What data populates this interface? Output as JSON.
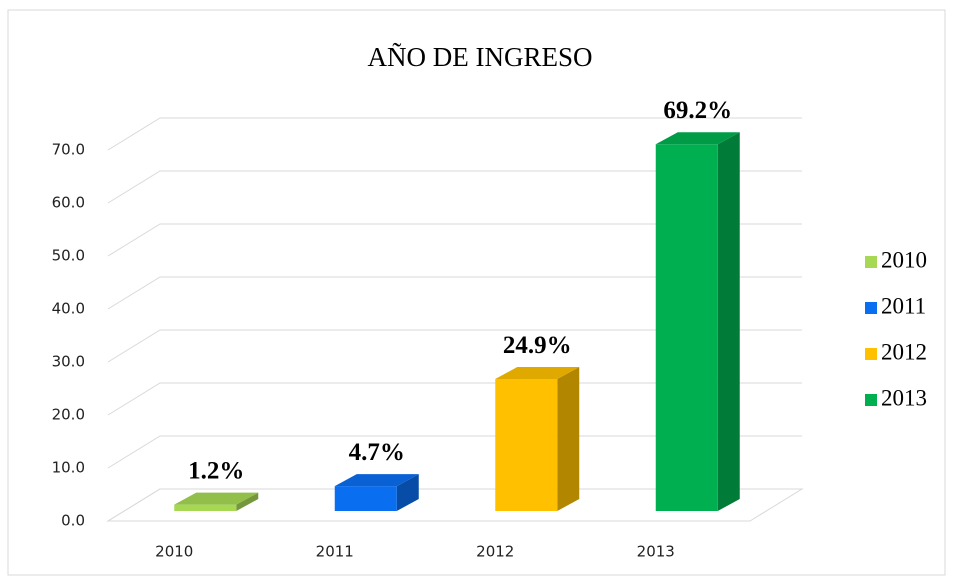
{
  "chart_data": {
    "type": "bar3d",
    "title": "AÑO DE INGRESO",
    "categories": [
      "2010",
      "2011",
      "2012",
      "2013"
    ],
    "values": [
      1.2,
      4.7,
      24.9,
      69.2
    ],
    "value_labels": [
      "1.2%",
      "4.7%",
      "24.9%",
      "69.2%"
    ],
    "colors": [
      "#a6d854",
      "#0a6ef0",
      "#ffc000",
      "#00b050"
    ],
    "ylim": [
      0,
      70
    ],
    "yticks": [
      {
        "value": 0,
        "label": "0.0"
      },
      {
        "value": 10,
        "label": "10.0"
      },
      {
        "value": 20,
        "label": "20.0"
      },
      {
        "value": 30,
        "label": "30.0"
      },
      {
        "value": 40,
        "label": "40.0"
      },
      {
        "value": 50,
        "label": "50.0"
      },
      {
        "value": 60,
        "label": "60.0"
      },
      {
        "value": 70,
        "label": "70.0"
      }
    ],
    "grid": true,
    "legend": "right"
  }
}
